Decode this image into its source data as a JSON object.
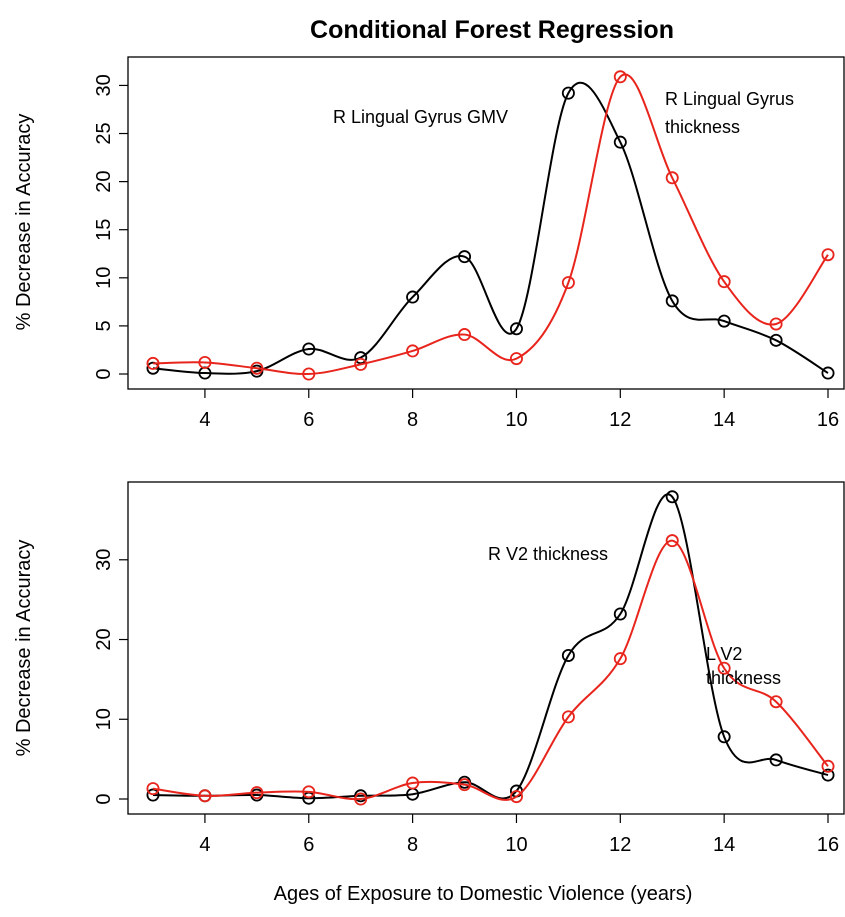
{
  "title": "Conditional Forest Regression",
  "xlabel": "Ages of Exposure to Domestic Violence (years)",
  "colors": {
    "black_series": "#000000",
    "red_series": "#e8251c"
  },
  "chart_data": [
    {
      "type": "line",
      "ylabel": "% Decrease in Accuracy",
      "xlim": [
        3,
        16
      ],
      "ylim": [
        0,
        31.5
      ],
      "xticks": [
        4,
        6,
        8,
        10,
        12,
        14,
        16
      ],
      "yticks": [
        0,
        5,
        10,
        15,
        20,
        25,
        30
      ],
      "x": [
        3,
        4,
        5,
        6,
        7,
        8,
        9,
        10,
        11,
        12,
        13,
        14,
        15,
        16
      ],
      "series": [
        {
          "name": "R Lingual Gyrus GMV",
          "color": "black",
          "values": [
            0.6,
            0.1,
            0.3,
            2.6,
            1.7,
            8.0,
            12.2,
            4.7,
            29.2,
            24.1,
            7.6,
            5.5,
            3.5,
            0.1
          ]
        },
        {
          "name": "R Lingual Gyrus thickness",
          "color": "red",
          "values": [
            1.1,
            1.2,
            0.6,
            0.0,
            1.0,
            2.4,
            4.1,
            1.6,
            9.5,
            30.9,
            20.4,
            9.6,
            5.2,
            12.4
          ]
        }
      ],
      "annotations": [
        {
          "text": "R Lingual Gyrus GMV"
        },
        {
          "lines": [
            "R Lingual Gyrus",
            "thickness"
          ]
        }
      ]
    },
    {
      "type": "line",
      "ylabel": "% Decrease in Accuracy",
      "xlim": [
        3,
        16
      ],
      "ylim": [
        0,
        38
      ],
      "xticks": [
        4,
        6,
        8,
        10,
        12,
        14,
        16
      ],
      "yticks": [
        0,
        10,
        20,
        30
      ],
      "x": [
        3,
        4,
        5,
        6,
        7,
        8,
        9,
        10,
        11,
        12,
        13,
        14,
        15,
        16
      ],
      "series": [
        {
          "name": "R V2 thickness",
          "color": "black",
          "values": [
            0.5,
            0.4,
            0.5,
            0.1,
            0.4,
            0.6,
            2.1,
            1.0,
            18.0,
            23.2,
            37.9,
            7.8,
            4.9,
            3.0
          ]
        },
        {
          "name": "L V2 thickness",
          "color": "red",
          "values": [
            1.3,
            0.4,
            0.8,
            0.9,
            0.0,
            2.0,
            1.8,
            0.3,
            10.3,
            17.6,
            32.4,
            16.4,
            12.2,
            4.1
          ]
        }
      ],
      "annotations": [
        {
          "text": "R V2 thickness"
        },
        {
          "lines": [
            "L V2",
            "thickness"
          ]
        }
      ]
    }
  ]
}
